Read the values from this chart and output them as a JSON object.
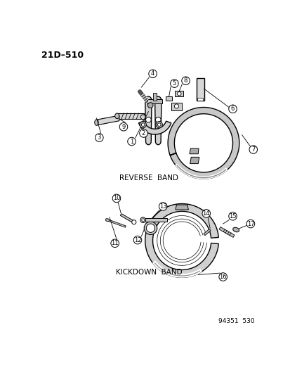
{
  "title": "21D–510",
  "bg": "#ffffff",
  "reverse_band_label": "REVERSE  BAND",
  "kickdown_band_label": "KICKDOWN  BAND",
  "footer_label": "94351  530",
  "lw": 1.0,
  "label_r": 7.5,
  "label_fs": 6.0
}
